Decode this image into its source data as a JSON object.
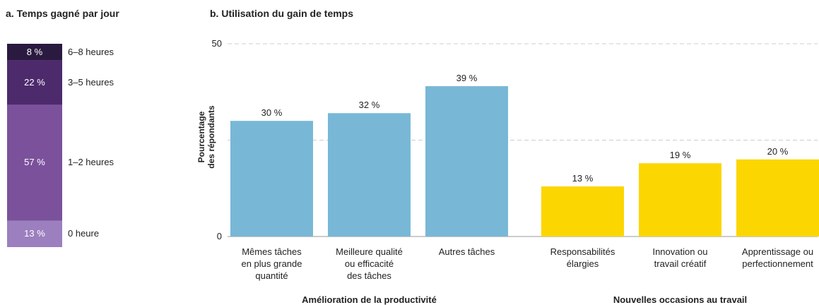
{
  "chart_data": [
    {
      "type": "stacked_bar",
      "title": "a. Temps gagné par jour",
      "categories": [
        "0 heure",
        "1–2 heures",
        "3–5 heures",
        "6–8 heures"
      ],
      "values": [
        13,
        57,
        22,
        8
      ],
      "value_labels": [
        "13 %",
        "57 %",
        "22 %",
        "8 %"
      ],
      "colors": [
        "#9c7fbf",
        "#7b519c",
        "#4c2a6c",
        "#2a1a3f"
      ]
    },
    {
      "type": "bar",
      "title": "b. Utilisation du gain de temps",
      "ylabel": "Pourcentage\ndes répondants",
      "ylim": [
        0,
        50
      ],
      "yticks": [
        0,
        {
          "value": 25,
          "label": null
        },
        50
      ],
      "grid": true,
      "groups": [
        {
          "name": "Amélioration de la productivité",
          "color": "#78b8d6",
          "categories": [
            "Mêmes tâches\nen plus grande\nquantité",
            "Meilleure qualité\nou efficacité\ndes tâches",
            "Autres tâches"
          ],
          "values": [
            30,
            32,
            39
          ],
          "value_labels": [
            "30 %",
            "32 %",
            "39 %"
          ]
        },
        {
          "name": "Nouvelles occasions au travail",
          "color": "#fcd600",
          "categories": [
            "Responsabilités\nélargies",
            "Innovation ou\ntravail créatif",
            "Apprentissage ou\nperfectionnement"
          ],
          "values": [
            13,
            19,
            20
          ],
          "value_labels": [
            "13 %",
            "19 %",
            "20 %"
          ]
        }
      ]
    }
  ]
}
